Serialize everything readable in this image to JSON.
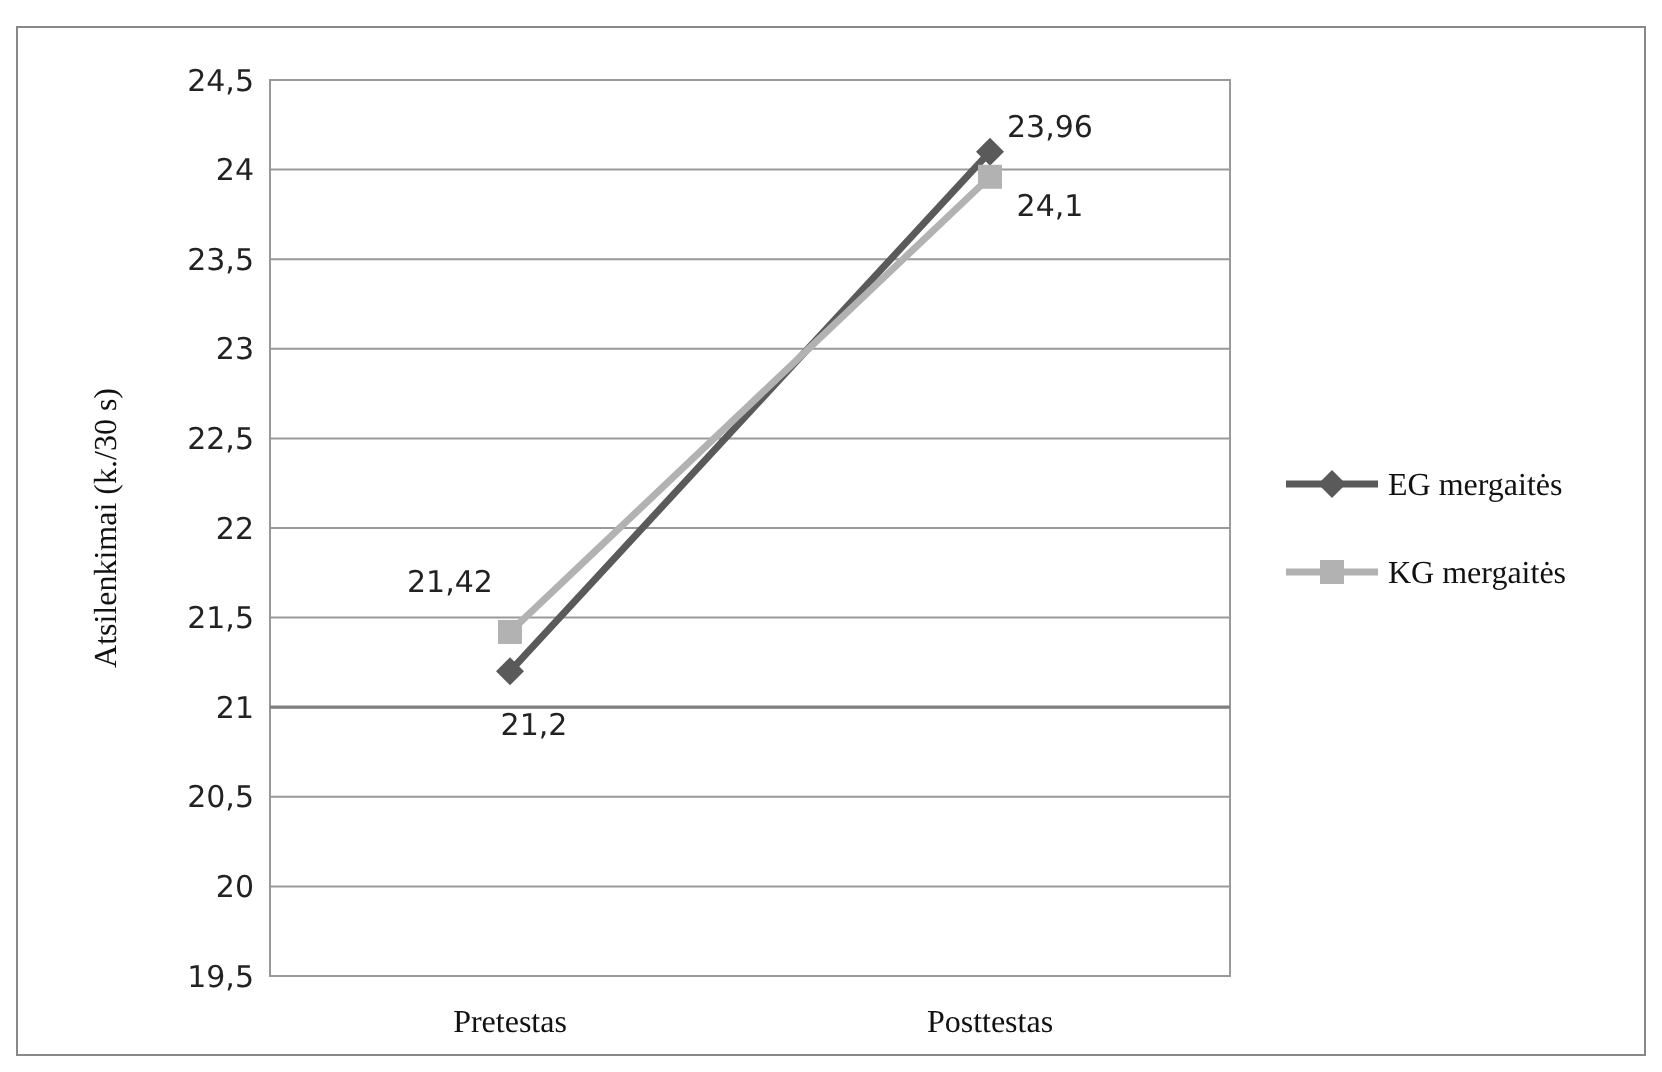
{
  "chart_data": {
    "type": "line",
    "ylabel": "Atsilenkimai (k./30 s)",
    "categories": [
      "Pretestas",
      "Posttestas"
    ],
    "series": [
      {
        "name": "EG mergaitės",
        "color": "#5a5a5a",
        "values": [
          21.2,
          24.1
        ],
        "value_labels": [
          "21,2",
          "24,1"
        ],
        "marker": "diamond"
      },
      {
        "name": "KG mergaitės",
        "color": "#b2b2b2",
        "values": [
          21.42,
          23.96
        ],
        "value_labels": [
          "21,42",
          "23,96"
        ],
        "marker": "square"
      }
    ],
    "ylim": [
      19.5,
      24.5
    ],
    "yticks": [
      {
        "value": 19.5,
        "label": "19,5"
      },
      20,
      {
        "value": 20.5,
        "label": "20,5"
      },
      21,
      {
        "value": 21.5,
        "label": "21,5"
      },
      22,
      {
        "value": 22.5,
        "label": "22,5"
      },
      23,
      {
        "value": 23.5,
        "label": "23,5"
      },
      24,
      {
        "value": 24.5,
        "label": "24,5"
      }
    ],
    "ref_lines": [
      {
        "axis": "y",
        "value": 21,
        "color": "#7f7f7f"
      }
    ],
    "grid": "y",
    "legend": "right"
  }
}
